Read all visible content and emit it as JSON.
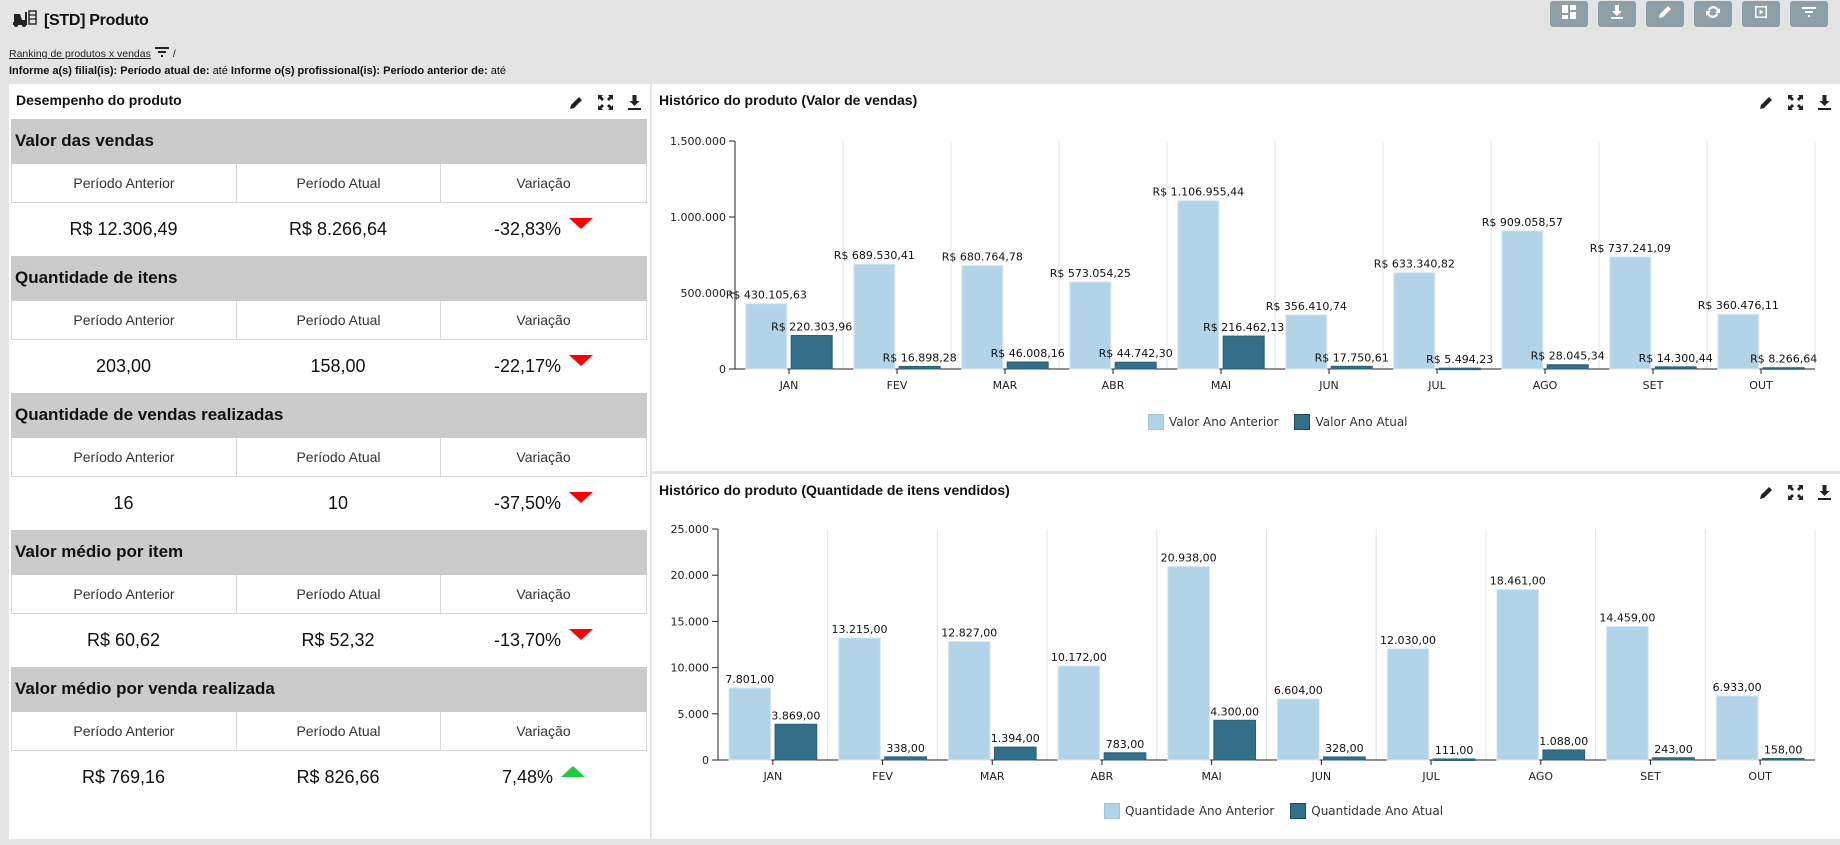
{
  "header": {
    "title": "[STD] Produto",
    "icon": "forklift-icon",
    "toolbar": [
      {
        "name": "layout-button",
        "icon": "layout-icon"
      },
      {
        "name": "download-button",
        "icon": "download-icon"
      },
      {
        "name": "edit-button",
        "icon": "pencil-icon"
      },
      {
        "name": "refresh-button",
        "icon": "refresh-icon"
      },
      {
        "name": "play-button",
        "icon": "play-icon"
      },
      {
        "name": "filter-button",
        "icon": "filter-icon"
      }
    ]
  },
  "breadcrumb": {
    "link": "Ranking de produtos x vendas",
    "separator": "/"
  },
  "filters": {
    "filial_label": "Informe a(s) filial(is):",
    "periodo_atual_label": "Período atual de:",
    "periodo_atual_ate": "até",
    "profissional_label": "Informe o(s) profissional(is):",
    "periodo_anterior_label": "Período anterior de:",
    "periodo_anterior_ate": "até"
  },
  "performance": {
    "title": "Desempenho do produto",
    "col_headers": [
      "Período Anterior",
      "Período Atual",
      "Variação"
    ],
    "metrics": [
      {
        "title": "Valor das vendas",
        "anterior": "R$ 12.306,49",
        "atual": "R$ 8.266,64",
        "variacao": "-32,83%",
        "trend": "down"
      },
      {
        "title": "Quantidade de itens",
        "anterior": "203,00",
        "atual": "158,00",
        "variacao": "-22,17%",
        "trend": "down"
      },
      {
        "title": "Quantidade de vendas realizadas",
        "anterior": "16",
        "atual": "10",
        "variacao": "-37,50%",
        "trend": "down"
      },
      {
        "title": "Valor médio por item",
        "anterior": "R$ 60,62",
        "atual": "R$ 52,32",
        "variacao": "-13,70%",
        "trend": "down"
      },
      {
        "title": "Valor médio por venda realizada",
        "anterior": "R$ 769,16",
        "atual": "R$ 826,66",
        "variacao": "7,48%",
        "trend": "up"
      }
    ],
    "colors": {
      "down": "#ff0000",
      "up": "#1ccc3f"
    }
  },
  "chart_data": [
    {
      "type": "bar",
      "title": "Histórico do produto (Valor de vendas)",
      "categories": [
        "JAN",
        "FEV",
        "MAR",
        "ABR",
        "MAI",
        "JUN",
        "JUL",
        "AGO",
        "SET",
        "OUT"
      ],
      "series": [
        {
          "name": "Valor Ano Anterior",
          "color": "#b3d3e8",
          "values": [
            430105.63,
            689530.41,
            680764.78,
            573054.25,
            1106955.44,
            356410.74,
            633340.82,
            909058.57,
            737241.09,
            360476.11
          ],
          "labels": [
            "R$ 430.105,63",
            "R$ 689.530,41",
            "R$ 680.764,78",
            "R$ 573.054,25",
            "R$ 1.106.955,44",
            "R$ 356.410,74",
            "R$ 633.340,82",
            "R$ 909.058,57",
            "R$ 737.241,09",
            "R$ 360.476,11"
          ]
        },
        {
          "name": "Valor Ano Atual",
          "color": "#336f88",
          "values": [
            220303.96,
            16898.28,
            46008.16,
            44742.3,
            216462.13,
            17750.61,
            5494.23,
            28045.34,
            14300.44,
            8266.64
          ],
          "labels": [
            "R$ 220.303,96",
            "R$ 16.898,28",
            "R$ 46.008,16",
            "R$ 44.742,30",
            "R$ 216.462,13",
            "R$ 17.750,61",
            "R$ 5.494,23",
            "R$ 28.045,34",
            "R$ 14.300,44",
            "R$ 8.266,64"
          ]
        }
      ],
      "yticks": [
        0,
        500000,
        1000000,
        1500000
      ],
      "ytick_labels": [
        "0",
        "500.000",
        "1.000.000",
        "1.500.000"
      ],
      "ylim": [
        0,
        1500000
      ],
      "xlabel": "",
      "ylabel": "",
      "grid": "vertical",
      "legend": "bottom"
    },
    {
      "type": "bar",
      "title": "Histórico do produto (Quantidade de itens vendidos)",
      "categories": [
        "JAN",
        "FEV",
        "MAR",
        "ABR",
        "MAI",
        "JUN",
        "JUL",
        "AGO",
        "SET",
        "OUT"
      ],
      "series": [
        {
          "name": "Quantidade Ano Anterior",
          "color": "#b3d3e8",
          "values": [
            7801,
            13215,
            12827,
            10172,
            20938,
            6604,
            12030,
            18461,
            14459,
            6933
          ],
          "labels": [
            "7.801,00",
            "13.215,00",
            "12.827,00",
            "10.172,00",
            "20.938,00",
            "6.604,00",
            "12.030,00",
            "18.461,00",
            "14.459,00",
            "6.933,00"
          ]
        },
        {
          "name": "Quantidade Ano Atual",
          "color": "#336f88",
          "values": [
            3869,
            338,
            1394,
            783,
            4300,
            328,
            111,
            1088,
            243,
            158
          ],
          "labels": [
            "3.869,00",
            "338,00",
            "1.394,00",
            "783,00",
            "4.300,00",
            "328,00",
            "111,00",
            "1.088,00",
            "243,00",
            "158,00"
          ]
        }
      ],
      "yticks": [
        0,
        5000,
        10000,
        15000,
        20000,
        25000
      ],
      "ytick_labels": [
        "0",
        "5.000",
        "10.000",
        "15.000",
        "20.000",
        "25.000"
      ],
      "ylim": [
        0,
        25000
      ],
      "xlabel": "",
      "ylabel": "",
      "grid": "vertical",
      "legend": "bottom"
    }
  ]
}
